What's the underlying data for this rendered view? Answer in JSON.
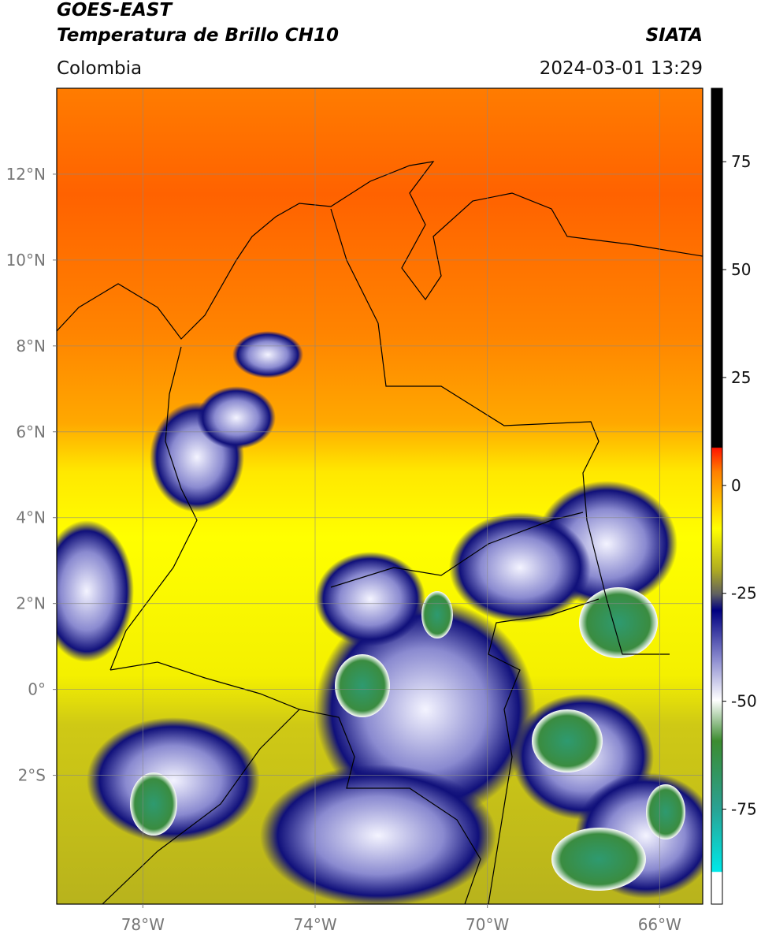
{
  "header": {
    "title": "GOES-EAST",
    "subtitle": "Temperatura de Brillo CH10",
    "source": "SIATA",
    "region": "Colombia",
    "timestamp": "2024-03-01 13:29"
  },
  "map": {
    "lon_range": [
      -80,
      -65
    ],
    "lat_range": [
      -5,
      14
    ],
    "grid": true,
    "lon_ticks": [
      {
        "value": -78,
        "label": "78°W"
      },
      {
        "value": -74,
        "label": "74°W"
      },
      {
        "value": -70,
        "label": "70°W"
      },
      {
        "value": -66,
        "label": "66°W"
      }
    ],
    "lat_ticks": [
      {
        "value": 12,
        "label": "12°N"
      },
      {
        "value": 10,
        "label": "10°N"
      },
      {
        "value": 8,
        "label": "8°N"
      },
      {
        "value": 6,
        "label": "6°N"
      },
      {
        "value": 4,
        "label": "4°N"
      },
      {
        "value": 2,
        "label": "2°N"
      },
      {
        "value": 0,
        "label": "0°"
      },
      {
        "value": -2,
        "label": "2°S"
      }
    ]
  },
  "colorbar": {
    "range": [
      -97,
      92
    ],
    "ticks": [
      75,
      50,
      25,
      0,
      -25,
      -50,
      -75
    ]
  }
}
